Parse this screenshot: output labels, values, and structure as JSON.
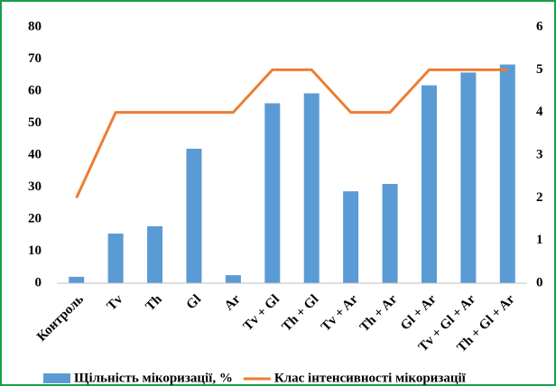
{
  "chart_data": {
    "type": "bar_line",
    "categories": [
      "Контроль",
      "Tv",
      "Th",
      "Gl",
      "Ar",
      "Tv + Gl",
      "Th + Gl",
      "Tv + Ar",
      "Th + Ar",
      "Gl + Ar",
      "Tv + Gl + Ar",
      "Th + Gl + Ar"
    ],
    "series": [
      {
        "name": "Щільність мікоризації, %",
        "color": "#5b9bd5",
        "type": "bar",
        "values": [
          2,
          15.5,
          17.8,
          42,
          2.5,
          56.2,
          59.3,
          28.7,
          31,
          61.8,
          65.8,
          68.3
        ]
      },
      {
        "name": "Клас інтенсивності мікоризації",
        "color": "#ed7d31",
        "type": "line",
        "axis": "y2",
        "values": [
          2,
          4,
          4,
          4,
          4,
          5,
          5,
          4,
          4,
          5,
          5,
          5
        ]
      }
    ],
    "ylim": [
      0,
      80
    ],
    "yticks": [
      0,
      10,
      20,
      30,
      40,
      50,
      60,
      70,
      80
    ],
    "y2lim": [
      0,
      6
    ],
    "y2ticks": [
      0,
      1,
      2,
      3,
      4,
      5,
      6
    ],
    "legend": "bottom"
  }
}
